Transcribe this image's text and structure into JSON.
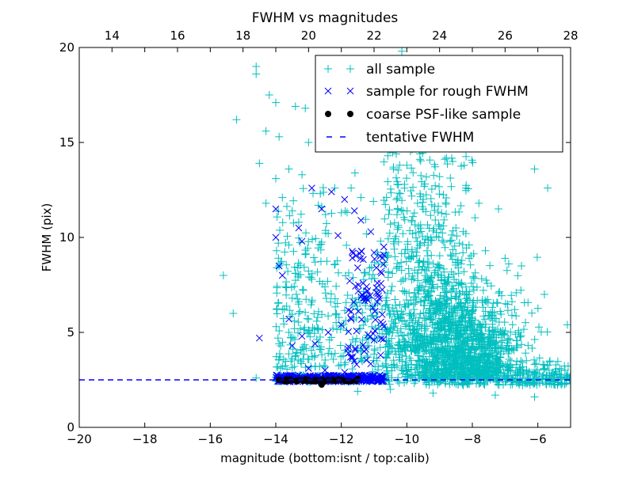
{
  "chart_data": {
    "type": "scatter",
    "title": "FWHM vs magnitudes",
    "xlabel": "magnitude (bottom:isnt / top:calib)",
    "ylabel": "FWHM (pix)",
    "xlim": [
      -20,
      -5
    ],
    "ylim": [
      0,
      20
    ],
    "top_xlim": [
      13,
      28
    ],
    "x_ticks": [
      -20,
      -18,
      -16,
      -14,
      -12,
      -10,
      -8,
      -6
    ],
    "x_tick_labels": [
      "−20",
      "−18",
      "−16",
      "−14",
      "−12",
      "−10",
      "−8",
      "−6"
    ],
    "top_x_ticks": [
      14,
      16,
      18,
      20,
      22,
      24,
      26,
      28
    ],
    "top_x_tick_labels": [
      "14",
      "16",
      "18",
      "20",
      "22",
      "24",
      "26",
      "28"
    ],
    "y_ticks": [
      0,
      5,
      10,
      15,
      20
    ],
    "y_tick_labels": [
      "0",
      "5",
      "10",
      "15",
      "20"
    ],
    "grid": false,
    "legend_position": "top-right",
    "series": [
      {
        "name": "all sample",
        "marker": "+",
        "color": "#00bfbf",
        "points": [
          [
            -15.3,
            6.0
          ],
          [
            -15.6,
            8.0
          ],
          [
            -15.2,
            16.2
          ],
          [
            -14.6,
            18.6
          ],
          [
            -14.6,
            19.0
          ],
          [
            -14.2,
            17.5
          ],
          [
            -14.0,
            17.1
          ],
          [
            -14.3,
            15.6
          ],
          [
            -13.9,
            15.3
          ],
          [
            -13.4,
            16.9
          ],
          [
            -13.1,
            16.8
          ],
          [
            -13.0,
            15.0
          ],
          [
            -12.5,
            19.1
          ],
          [
            -12.0,
            19.3
          ],
          [
            -11.1,
            17.9
          ],
          [
            -14.5,
            13.9
          ],
          [
            -14.0,
            13.1
          ],
          [
            -13.6,
            13.6
          ],
          [
            -13.2,
            13.3
          ],
          [
            -12.2,
            12.6
          ],
          [
            -11.7,
            12.6
          ],
          [
            -11.4,
            12.1
          ],
          [
            -14.3,
            11.8
          ],
          [
            -13.8,
            12.1
          ],
          [
            -13.5,
            11.4
          ],
          [
            -12.6,
            11.6
          ],
          [
            -12.0,
            11.3
          ],
          [
            -13.3,
            10.8
          ],
          [
            -12.4,
            10.2
          ],
          [
            -13.6,
            9.6
          ],
          [
            -13.1,
            9.1
          ],
          [
            -12.8,
            8.7
          ],
          [
            -13.9,
            8.5
          ],
          [
            -13.4,
            8.1
          ],
          [
            -12.9,
            7.8
          ],
          [
            -12.5,
            7.4
          ],
          [
            -13.7,
            7.4
          ],
          [
            -13.5,
            6.8
          ],
          [
            -13.8,
            6.2
          ],
          [
            -13.3,
            6.0
          ],
          [
            -13.0,
            5.7
          ],
          [
            -12.7,
            5.2
          ],
          [
            -13.6,
            5.0
          ],
          [
            -13.9,
            4.4
          ],
          [
            -13.2,
            4.1
          ],
          [
            -12.4,
            3.9
          ],
          [
            -11.9,
            3.3
          ],
          [
            -13.8,
            3.2
          ],
          [
            -13.5,
            3.6
          ],
          [
            -12.9,
            6.6
          ],
          [
            -11.5,
            6.2
          ],
          [
            -11.2,
            5.7
          ],
          [
            -10.8,
            9.8
          ],
          [
            -10.5,
            10.7
          ],
          [
            -10.3,
            11.2
          ],
          [
            -10.0,
            13.8
          ],
          [
            -9.6,
            14.4
          ],
          [
            -10.2,
            12.3
          ],
          [
            -9.5,
            12.0
          ],
          [
            -9.0,
            13.2
          ],
          [
            -8.6,
            14.0
          ],
          [
            -8.2,
            12.6
          ],
          [
            -7.8,
            11.8
          ],
          [
            -7.2,
            11.5
          ],
          [
            -6.9,
            15.6
          ],
          [
            -6.1,
            13.6
          ],
          [
            -5.7,
            12.6
          ],
          [
            -8.5,
            10.5
          ],
          [
            -8.1,
            9.6
          ],
          [
            -7.6,
            9.3
          ],
          [
            -7.0,
            8.9
          ],
          [
            -6.5,
            8.5
          ],
          [
            -5.8,
            7.0
          ],
          [
            -5.1,
            5.4
          ],
          [
            -9.2,
            16.6
          ],
          [
            -8.9,
            17.5
          ],
          [
            -8.0,
            18.3
          ],
          [
            -7.1,
            17.0
          ],
          [
            -10.5,
            2.0
          ],
          [
            -9.2,
            1.8
          ],
          [
            -7.3,
            1.7
          ],
          [
            -6.1,
            1.6
          ],
          [
            -14.6,
            2.6
          ],
          [
            -11.5,
            1.9
          ]
        ]
      },
      {
        "name": "sample for rough FWHM",
        "marker": "x",
        "color": "#0000ff",
        "points": [
          [
            -14.5,
            4.7
          ],
          [
            -14.0,
            10.0
          ],
          [
            -14.0,
            11.5
          ],
          [
            -13.9,
            8.5
          ],
          [
            -13.8,
            8.0
          ],
          [
            -13.6,
            5.7
          ],
          [
            -13.3,
            10.5
          ],
          [
            -13.2,
            9.8
          ],
          [
            -12.9,
            12.6
          ],
          [
            -12.6,
            11.5
          ],
          [
            -12.3,
            12.4
          ],
          [
            -12.1,
            10.1
          ],
          [
            -11.9,
            12.0
          ],
          [
            -11.6,
            11.4
          ],
          [
            -11.4,
            10.9
          ],
          [
            -11.1,
            10.3
          ],
          [
            -11.0,
            9.2
          ],
          [
            -10.8,
            8.2
          ],
          [
            -10.9,
            7.6
          ],
          [
            -11.3,
            6.8
          ],
          [
            -11.7,
            6.1
          ],
          [
            -12.0,
            5.4
          ],
          [
            -12.4,
            5.0
          ],
          [
            -12.8,
            4.4
          ],
          [
            -13.2,
            4.8
          ],
          [
            -13.5,
            4.3
          ],
          [
            -11.5,
            8.4
          ],
          [
            -11.2,
            7.2
          ],
          [
            -10.9,
            6.6
          ],
          [
            -11.0,
            4.6
          ],
          [
            -11.3,
            4.0
          ],
          [
            -11.6,
            3.5
          ],
          [
            -10.8,
            3.8
          ],
          [
            -10.7,
            5.3
          ],
          [
            -10.7,
            9.5
          ],
          [
            -12.5,
            3.0
          ],
          [
            -13.0,
            3.1
          ],
          [
            -11.9,
            2.9
          ]
        ],
        "band": {
          "x_range": [
            -14.0,
            -10.7
          ],
          "y_range": [
            2.4,
            2.75
          ]
        }
      },
      {
        "name": "coarse PSF-like sample",
        "marker": "o",
        "color": "#000000",
        "points": [
          [
            -13.9,
            2.5
          ],
          [
            -13.6,
            2.45
          ],
          [
            -13.3,
            2.5
          ],
          [
            -13.0,
            2.45
          ],
          [
            -12.8,
            2.5
          ],
          [
            -12.6,
            2.25
          ],
          [
            -12.4,
            2.5
          ],
          [
            -12.2,
            2.45
          ],
          [
            -12.0,
            2.5
          ],
          [
            -11.8,
            2.45
          ],
          [
            -11.5,
            2.55
          ]
        ]
      },
      {
        "name": "tentative FWHM",
        "marker": "--",
        "color": "#0000ff",
        "y_value": 2.5
      }
    ]
  }
}
